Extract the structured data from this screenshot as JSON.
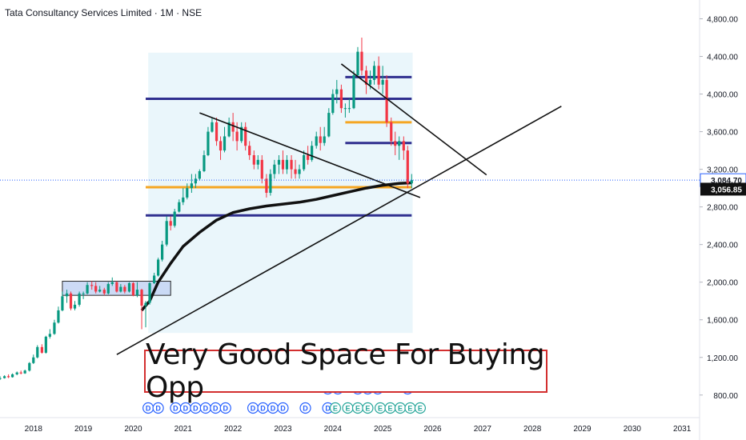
{
  "header": {
    "symbol": "Tata Consultancy Services Limited · 1M · NSE"
  },
  "annotation": {
    "text": "Very Good Space For Buying Opp"
  },
  "price_tags": {
    "last": "3,084.70",
    "ma": "3,056.85"
  },
  "colors": {
    "up": "#089981",
    "down": "#f23645",
    "ma": "#111111",
    "level_blue": "#2f2f8f",
    "level_orange": "#f5a623",
    "box_fill": "#e6f4fa",
    "gold": "#f5a623",
    "tag_blue": "#2962ff"
  },
  "events": {
    "d_label": "D",
    "e_label": "E",
    "row_low": [
      "2020.3",
      "2020.5",
      "2020.85",
      "2021.05",
      "2021.25",
      "2021.45",
      "2021.65",
      "2021.85",
      "2022.4",
      "2022.6",
      "2022.8",
      "2023.0",
      "2023.45",
      "2023.9",
      "2024.05",
      "2024.3",
      "2024.5",
      "2024.7",
      "2024.95",
      "2025.15",
      "2025.35",
      "2025.55",
      "2025.75"
    ],
    "row_low_types": [
      "D",
      "D",
      "D",
      "D",
      "D",
      "D",
      "D",
      "D",
      "D",
      "D",
      "D",
      "D",
      "D",
      "D",
      "E",
      "E",
      "E",
      "E",
      "E",
      "E",
      "E",
      "E",
      "E"
    ],
    "row_high": [
      "2023.9",
      "2024.1",
      "2024.5",
      "2024.7",
      "2024.9",
      "2025.5"
    ]
  },
  "chart_data": {
    "type": "candlestick",
    "title": "Tata Consultancy Services Limited · 1M · NSE",
    "x_ticks": [
      "2018",
      "2019",
      "2020",
      "2021",
      "2022",
      "2023",
      "2024",
      "2025",
      "2026",
      "2027",
      "2028",
      "2029",
      "2030",
      "2031"
    ],
    "y_ticks": [
      "800.00",
      "1,200.00",
      "1,600.00",
      "2,000.00",
      "2,400.00",
      "2,800.00",
      "3,200.00",
      "3,600.00",
      "4,000.00",
      "4,400.00",
      "4,800.00"
    ],
    "xlim": [
      2017.33,
      2031.35
    ],
    "ylim": [
      560,
      5000
    ],
    "last_price": 3084.7,
    "ma_price": 3056.85,
    "candles": [
      [
        2017.33,
        970,
        980,
        960,
        1000
      ],
      [
        2017.42,
        980,
        1000,
        975,
        1010
      ],
      [
        2017.5,
        1000,
        990,
        980,
        1020
      ],
      [
        2017.58,
        990,
        1020,
        985,
        1030
      ],
      [
        2017.67,
        1020,
        1040,
        1010,
        1050
      ],
      [
        2017.75,
        1040,
        1030,
        1020,
        1060
      ],
      [
        2017.83,
        1030,
        1060,
        1025,
        1070
      ],
      [
        2017.92,
        1060,
        1140,
        1050,
        1150
      ],
      [
        2018.0,
        1140,
        1200,
        1130,
        1230
      ],
      [
        2018.08,
        1200,
        1310,
        1190,
        1330
      ],
      [
        2018.17,
        1310,
        1250,
        1240,
        1340
      ],
      [
        2018.25,
        1250,
        1420,
        1240,
        1430
      ],
      [
        2018.33,
        1420,
        1450,
        1400,
        1500
      ],
      [
        2018.42,
        1450,
        1570,
        1440,
        1600
      ],
      [
        2018.5,
        1570,
        1700,
        1560,
        1740
      ],
      [
        2018.58,
        1700,
        1850,
        1690,
        1900
      ],
      [
        2018.67,
        1850,
        1880,
        1780,
        1920
      ],
      [
        2018.75,
        1880,
        1720,
        1700,
        1900
      ],
      [
        2018.83,
        1720,
        1760,
        1700,
        1800
      ],
      [
        2018.92,
        1760,
        1880,
        1740,
        1900
      ],
      [
        2019.0,
        1880,
        1880,
        1820,
        1900
      ],
      [
        2019.08,
        1880,
        1970,
        1870,
        2000
      ],
      [
        2019.17,
        1970,
        1960,
        1920,
        2010
      ],
      [
        2019.25,
        1960,
        1900,
        1880,
        2000
      ],
      [
        2019.33,
        1900,
        1920,
        1890,
        1960
      ],
      [
        2019.42,
        1920,
        1880,
        1860,
        1940
      ],
      [
        2019.5,
        1880,
        1980,
        1870,
        2000
      ],
      [
        2019.58,
        1980,
        2000,
        1960,
        2050
      ],
      [
        2019.67,
        2000,
        1900,
        1890,
        2010
      ],
      [
        2019.75,
        1900,
        1950,
        1890,
        1980
      ],
      [
        2019.83,
        1950,
        1900,
        1880,
        1970
      ],
      [
        2019.92,
        1900,
        1990,
        1890,
        2000
      ],
      [
        2020.0,
        1990,
        1860,
        1850,
        2000
      ],
      [
        2020.08,
        1860,
        1920,
        1840,
        2000
      ],
      [
        2020.17,
        1920,
        1750,
        1500,
        1930
      ],
      [
        2020.25,
        1750,
        1780,
        1520,
        1800
      ],
      [
        2020.33,
        1780,
        1990,
        1760,
        2000
      ],
      [
        2020.42,
        1990,
        2070,
        1980,
        2100
      ],
      [
        2020.5,
        2070,
        2240,
        2060,
        2260
      ],
      [
        2020.58,
        2240,
        2400,
        2220,
        2440
      ],
      [
        2020.67,
        2400,
        2650,
        2380,
        2700
      ],
      [
        2020.75,
        2650,
        2600,
        2550,
        2700
      ],
      [
        2020.83,
        2600,
        2750,
        2580,
        2780
      ],
      [
        2020.92,
        2750,
        2850,
        2740,
        2880
      ],
      [
        2021.0,
        2850,
        2900,
        2820,
        3000
      ],
      [
        2021.08,
        2900,
        3000,
        2880,
        3050
      ],
      [
        2021.17,
        3000,
        3050,
        2950,
        3150
      ],
      [
        2021.25,
        3050,
        3100,
        3000,
        3150
      ],
      [
        2021.33,
        3100,
        3180,
        3080,
        3200
      ],
      [
        2021.42,
        3180,
        3350,
        3170,
        3400
      ],
      [
        2021.5,
        3350,
        3600,
        3340,
        3650
      ],
      [
        2021.58,
        3600,
        3700,
        3590,
        3750
      ],
      [
        2021.67,
        3700,
        3500,
        3450,
        3750
      ],
      [
        2021.75,
        3500,
        3400,
        3300,
        3550
      ],
      [
        2021.83,
        3400,
        3550,
        3380,
        3650
      ],
      [
        2021.92,
        3550,
        3700,
        3540,
        3750
      ],
      [
        2022.0,
        3700,
        3600,
        3500,
        3800
      ],
      [
        2022.08,
        3600,
        3500,
        3400,
        3700
      ],
      [
        2022.17,
        3500,
        3650,
        3480,
        3700
      ],
      [
        2022.25,
        3650,
        3450,
        3400,
        3700
      ],
      [
        2022.33,
        3450,
        3350,
        3300,
        3500
      ],
      [
        2022.42,
        3350,
        3250,
        3200,
        3400
      ],
      [
        2022.5,
        3250,
        3300,
        3200,
        3350
      ],
      [
        2022.58,
        3300,
        3100,
        3050,
        3350
      ],
      [
        2022.67,
        3100,
        2950,
        2900,
        3150
      ],
      [
        2022.75,
        2950,
        3150,
        2920,
        3200
      ],
      [
        2022.83,
        3150,
        3250,
        3100,
        3300
      ],
      [
        2022.92,
        3250,
        3300,
        3150,
        3350
      ],
      [
        2023.0,
        3300,
        3200,
        3150,
        3400
      ],
      [
        2023.08,
        3200,
        3300,
        3150,
        3350
      ],
      [
        2023.17,
        3300,
        3200,
        3100,
        3350
      ],
      [
        2023.25,
        3200,
        3150,
        3100,
        3300
      ],
      [
        2023.33,
        3150,
        3200,
        3100,
        3250
      ],
      [
        2023.42,
        3200,
        3350,
        3180,
        3400
      ],
      [
        2023.5,
        3350,
        3300,
        3250,
        3450
      ],
      [
        2023.58,
        3300,
        3450,
        3280,
        3500
      ],
      [
        2023.67,
        3450,
        3550,
        3420,
        3600
      ],
      [
        2023.75,
        3550,
        3480,
        3400,
        3650
      ],
      [
        2023.83,
        3480,
        3550,
        3450,
        3650
      ],
      [
        2023.92,
        3550,
        3800,
        3540,
        3850
      ],
      [
        2024.0,
        3800,
        4000,
        3780,
        4050
      ],
      [
        2024.08,
        4000,
        4050,
        3900,
        4150
      ],
      [
        2024.17,
        4050,
        3850,
        3800,
        4100
      ],
      [
        2024.25,
        3850,
        3850,
        3750,
        3900
      ],
      [
        2024.33,
        3850,
        3850,
        3800,
        3950
      ],
      [
        2024.42,
        3850,
        4200,
        3840,
        4250
      ],
      [
        2024.5,
        4200,
        4450,
        4180,
        4500
      ],
      [
        2024.58,
        4450,
        4250,
        4200,
        4600
      ],
      [
        2024.67,
        4250,
        4100,
        4000,
        4300
      ],
      [
        2024.75,
        4100,
        4150,
        4050,
        4250
      ],
      [
        2024.83,
        4150,
        4300,
        4100,
        4350
      ],
      [
        2024.92,
        4300,
        4100,
        4050,
        4400
      ],
      [
        2025.0,
        4100,
        4150,
        4000,
        4300
      ],
      [
        2025.08,
        4150,
        3700,
        3650,
        4200
      ],
      [
        2025.17,
        3700,
        3500,
        3450,
        3750
      ],
      [
        2025.25,
        3500,
        3450,
        3350,
        3600
      ],
      [
        2025.33,
        3450,
        3500,
        3300,
        3550
      ],
      [
        2025.42,
        3500,
        3400,
        3300,
        3550
      ],
      [
        2025.5,
        3400,
        3050,
        3000,
        3450
      ],
      [
        2025.58,
        3050,
        3085,
        3000,
        3150
      ]
    ],
    "moving_average": [
      [
        2020.17,
        1700
      ],
      [
        2020.33,
        1800
      ],
      [
        2020.5,
        2000
      ],
      [
        2020.75,
        2200
      ],
      [
        2021.0,
        2380
      ],
      [
        2021.33,
        2530
      ],
      [
        2021.67,
        2660
      ],
      [
        2022.0,
        2740
      ],
      [
        2022.33,
        2780
      ],
      [
        2022.67,
        2810
      ],
      [
        2023.0,
        2830
      ],
      [
        2023.33,
        2850
      ],
      [
        2023.67,
        2880
      ],
      [
        2024.0,
        2920
      ],
      [
        2024.33,
        2960
      ],
      [
        2024.67,
        3000
      ],
      [
        2025.0,
        3030
      ],
      [
        2025.33,
        3050
      ],
      [
        2025.58,
        3056.85
      ]
    ],
    "levels": [
      {
        "y": 4180,
        "x0": 2024.25,
        "x1": 2025.58,
        "color": "blue"
      },
      {
        "y": 3950,
        "x0": 2020.25,
        "x1": 2025.58,
        "color": "blue"
      },
      {
        "y": 3700,
        "x0": 2024.25,
        "x1": 2025.58,
        "color": "orange"
      },
      {
        "y": 3480,
        "x0": 2024.25,
        "x1": 2025.58,
        "color": "blue"
      },
      {
        "y": 3010,
        "x0": 2020.25,
        "x1": 2025.58,
        "color": "orange"
      },
      {
        "y": 2710,
        "x0": 2020.25,
        "x1": 2025.58,
        "color": "blue"
      }
    ],
    "zones": [
      {
        "x0": 2020.3,
        "x1": 2025.6,
        "y0": 1460,
        "y1": 4440,
        "kind": "range-box"
      },
      {
        "x0": 2018.58,
        "x1": 2020.75,
        "y0": 1860,
        "y1": 2010,
        "kind": "breakout-box"
      }
    ],
    "trendlines": [
      {
        "x0": 2021.33,
        "y0": 3800,
        "x1": 2025.75,
        "y1": 2900
      },
      {
        "x0": 2019.67,
        "y0": 1230,
        "x1": 2028.58,
        "y1": 3870
      },
      {
        "x0": 2024.17,
        "y0": 4320,
        "x1": 2027.08,
        "y1": 3140
      }
    ]
  }
}
